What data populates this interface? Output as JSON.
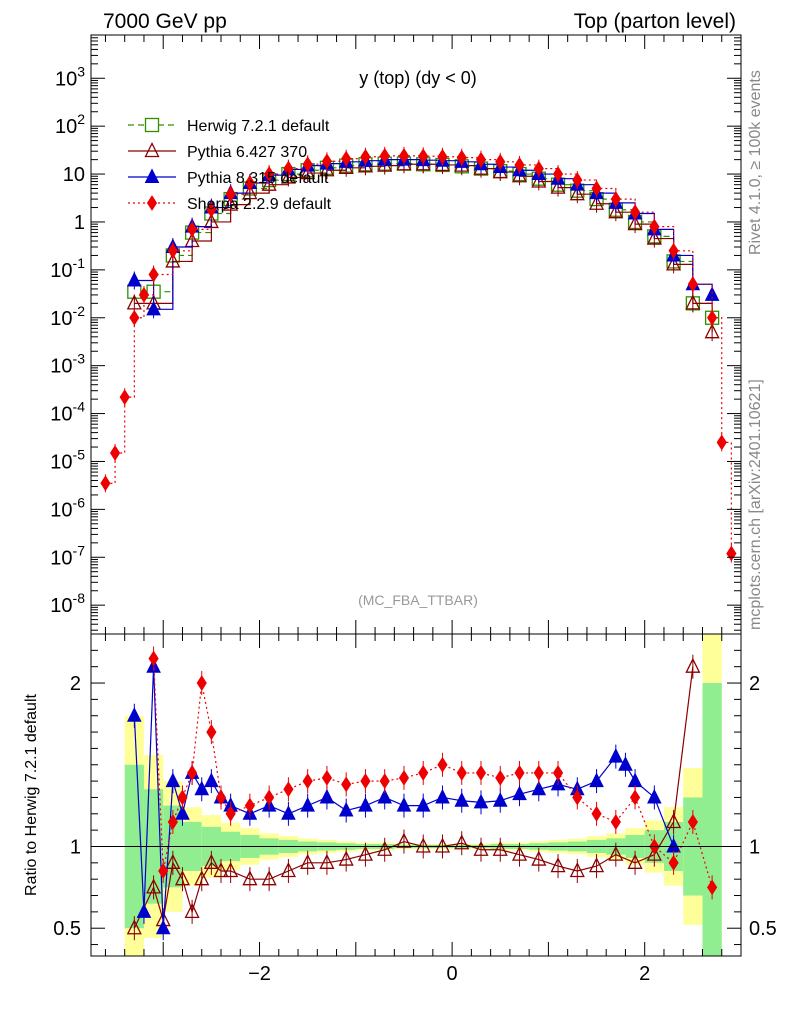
{
  "header": {
    "left_title": "7000 GeV pp",
    "right_title": "Top (parton level)"
  },
  "side_labels": {
    "rivet": "Rivet 4.1.0, ≥ 100k events",
    "mcplots": "mcplots.cern.ch [arXiv:2401.10621]"
  },
  "colors": {
    "herwig": "#2f8f00",
    "pythia6": "#8b0000",
    "pythia8": "#0000cc",
    "sherpa": "#ee0000",
    "band_inner": "#90ee90",
    "band_outer": "#ffff99"
  },
  "chart_data": [
    {
      "type": "line",
      "title": "y (top) (dy < 0)",
      "watermark": "(MC_FBA_TTBAR)",
      "xlabel": "",
      "ylabel": "",
      "yscale": "log",
      "ylim": [
        2.5e-09,
        8000
      ],
      "xlim": [
        -3.75,
        3.0
      ],
      "ytick_labels": [
        "10^-8",
        "10^-7",
        "10^-6",
        "10^-5",
        "10^-4",
        "10^-3",
        "10^-2",
        "10^-1",
        "1",
        "10",
        "10^2",
        "10^3"
      ],
      "legend": {
        "position": "top-left",
        "entries": [
          "Herwig 7.2.1 default",
          "Pythia 6.427 370",
          "Pythia 8.315 default",
          "Sherpa 2.2.9 default"
        ]
      },
      "series": [
        {
          "name": "Herwig 7.2.1 default",
          "style": "dashed",
          "marker": "open-square",
          "x": [
            -3.3,
            -3.1,
            -2.9,
            -2.7,
            -2.5,
            -2.3,
            -2.1,
            -1.9,
            -1.7,
            -1.5,
            -1.3,
            -1.1,
            -0.9,
            -0.7,
            -0.5,
            -0.3,
            -0.1,
            0.1,
            0.3,
            0.5,
            0.7,
            0.9,
            1.1,
            1.3,
            1.5,
            1.7,
            1.9,
            2.1,
            2.3,
            2.5,
            2.7
          ],
          "y": [
            0.035,
            0.035,
            0.2,
            0.6,
            1.5,
            3.0,
            5.0,
            7.5,
            10,
            12,
            13.5,
            15,
            16,
            16.5,
            16.5,
            16,
            15.5,
            14.5,
            13,
            11.5,
            10,
            8,
            6,
            4.5,
            3,
            1.8,
            1.0,
            0.5,
            0.15,
            0.02,
            0.01
          ]
        },
        {
          "name": "Pythia 6.427 370",
          "style": "solid",
          "marker": "open-triangle",
          "x": [
            -3.3,
            -3.1,
            -2.9,
            -2.7,
            -2.5,
            -2.3,
            -2.1,
            -1.9,
            -1.7,
            -1.5,
            -1.3,
            -1.1,
            -0.9,
            -0.7,
            -0.5,
            -0.3,
            -0.1,
            0.1,
            0.3,
            0.5,
            0.7,
            0.9,
            1.1,
            1.3,
            1.5,
            1.7,
            1.9,
            2.1,
            2.3,
            2.5,
            2.7
          ],
          "y": [
            0.02,
            0.02,
            0.15,
            0.4,
            1.0,
            2.3,
            4.0,
            6.0,
            8.5,
            10.5,
            12,
            13.5,
            14.5,
            15,
            16,
            16,
            15.5,
            15,
            13,
            11,
            9,
            7,
            5.2,
            3.8,
            2.4,
            1.6,
            0.9,
            0.45,
            0.13,
            0.02,
            0.005
          ]
        },
        {
          "name": "Pythia 8.315 default",
          "style": "solid",
          "marker": "filled-triangle",
          "x": [
            -3.3,
            -3.1,
            -2.9,
            -2.7,
            -2.5,
            -2.3,
            -2.1,
            -1.9,
            -1.7,
            -1.5,
            -1.3,
            -1.1,
            -0.9,
            -0.7,
            -0.5,
            -0.3,
            -0.1,
            0.1,
            0.3,
            0.5,
            0.7,
            0.9,
            1.1,
            1.3,
            1.5,
            1.7,
            1.9,
            2.1,
            2.3,
            2.5,
            2.7
          ],
          "y": [
            0.06,
            0.015,
            0.3,
            0.8,
            2.0,
            4.0,
            6.5,
            9.5,
            12.5,
            15,
            16.5,
            18,
            19,
            20,
            20,
            19.5,
            19,
            18,
            16,
            14,
            12,
            10,
            8,
            6,
            4,
            2.5,
            1.5,
            0.7,
            0.2,
            0.05,
            0.03
          ]
        },
        {
          "name": "Sherpa 2.2.9 default",
          "style": "dotted",
          "marker": "filled-diamond",
          "x": [
            -3.6,
            -3.5,
            -3.4,
            -3.3,
            -3.2,
            -3.1,
            -2.9,
            -2.7,
            -2.5,
            -2.3,
            -2.1,
            -1.9,
            -1.7,
            -1.5,
            -1.3,
            -1.1,
            -0.9,
            -0.7,
            -0.5,
            -0.3,
            -0.1,
            0.1,
            0.3,
            0.5,
            0.7,
            0.9,
            1.1,
            1.3,
            1.5,
            1.7,
            1.9,
            2.1,
            2.3,
            2.5,
            2.7,
            2.8,
            2.9
          ],
          "y": [
            3.5e-06,
            1.5e-05,
            0.00022,
            0.01,
            0.03,
            0.08,
            0.25,
            0.7,
            1.8,
            3.8,
            6.5,
            10,
            13,
            16,
            18.5,
            21,
            23,
            24,
            24,
            23.5,
            23,
            22,
            20,
            18,
            15.5,
            13,
            10,
            7.5,
            5,
            3,
            1.6,
            0.8,
            0.25,
            0.05,
            0.01,
            2.5e-05,
            1.2e-07
          ]
        }
      ]
    },
    {
      "type": "line",
      "title": "",
      "xlabel": "",
      "ylabel": "Ratio to Herwig 7.2.1 default",
      "ylim": [
        0.33,
        2.3
      ],
      "xlim": [
        -3.75,
        3.0
      ],
      "xtick_labels": [
        "−2",
        "0",
        "2"
      ],
      "ytick_labels": [
        "0.5",
        "1",
        "2"
      ],
      "reference_line": 1,
      "series": [
        {
          "name": "Pythia 6.427 370",
          "x": [
            -3.3,
            -3.1,
            -3.0,
            -2.9,
            -2.8,
            -2.7,
            -2.6,
            -2.5,
            -2.4,
            -2.3,
            -2.1,
            -1.9,
            -1.7,
            -1.5,
            -1.3,
            -1.1,
            -0.9,
            -0.7,
            -0.5,
            -0.3,
            -0.1,
            0.1,
            0.3,
            0.5,
            0.7,
            0.9,
            1.1,
            1.3,
            1.5,
            1.7,
            1.9,
            2.1,
            2.3,
            2.5
          ],
          "y": [
            0.5,
            0.75,
            0.55,
            0.9,
            0.8,
            0.6,
            0.8,
            0.9,
            0.85,
            0.85,
            0.8,
            0.8,
            0.85,
            0.9,
            0.9,
            0.92,
            0.95,
            0.98,
            1.03,
            1.0,
            1.0,
            1.02,
            0.98,
            0.98,
            0.95,
            0.92,
            0.88,
            0.85,
            0.88,
            0.95,
            0.9,
            0.95,
            1.15,
            2.1
          ]
        },
        {
          "name": "Pythia 8.315 default",
          "x": [
            -3.3,
            -3.2,
            -3.1,
            -3.0,
            -2.9,
            -2.8,
            -2.7,
            -2.6,
            -2.5,
            -2.4,
            -2.3,
            -2.1,
            -1.9,
            -1.7,
            -1.5,
            -1.3,
            -1.1,
            -0.9,
            -0.7,
            -0.5,
            -0.3,
            -0.1,
            0.1,
            0.3,
            0.5,
            0.7,
            0.9,
            1.1,
            1.3,
            1.5,
            1.7,
            1.8,
            1.9,
            2.1,
            2.3
          ],
          "y": [
            1.8,
            0.6,
            2.1,
            0.5,
            1.4,
            1.2,
            1.45,
            1.35,
            1.4,
            1.3,
            1.25,
            1.2,
            1.25,
            1.2,
            1.25,
            1.3,
            1.22,
            1.25,
            1.3,
            1.25,
            1.25,
            1.3,
            1.28,
            1.27,
            1.28,
            1.32,
            1.35,
            1.38,
            1.35,
            1.4,
            1.55,
            1.5,
            1.4,
            1.3,
            1.0
          ]
        },
        {
          "name": "Sherpa 2.2.9 default",
          "x": [
            -3.1,
            -3.0,
            -2.9,
            -2.8,
            -2.7,
            -2.6,
            -2.5,
            -2.4,
            -2.3,
            -2.1,
            -1.9,
            -1.7,
            -1.5,
            -1.3,
            -1.1,
            -0.9,
            -0.7,
            -0.5,
            -0.3,
            -0.1,
            0.1,
            0.3,
            0.5,
            0.7,
            0.9,
            1.1,
            1.3,
            1.5,
            1.7,
            1.9,
            2.1,
            2.3,
            2.5,
            2.7
          ],
          "y": [
            2.15,
            0.85,
            1.15,
            1.3,
            1.45,
            2.0,
            1.7,
            1.3,
            1.2,
            1.25,
            1.3,
            1.35,
            1.4,
            1.42,
            1.38,
            1.4,
            1.4,
            1.42,
            1.45,
            1.5,
            1.45,
            1.45,
            1.42,
            1.45,
            1.45,
            1.45,
            1.3,
            1.2,
            1.15,
            1.3,
            1.0,
            0.9,
            1.15,
            0.75
          ]
        },
        {
          "name": "Herwig 7.2.1 default uncertainty band (inner)",
          "x": [
            -3.3,
            -3.1,
            -2.9,
            -2.7,
            -2.5,
            -2.3,
            -2.1,
            -1.9,
            -1.7,
            -1.5,
            -1.3,
            -1.1,
            -0.9,
            -0.7,
            -0.5,
            -0.3,
            -0.1,
            0.1,
            0.3,
            0.5,
            0.7,
            0.9,
            1.1,
            1.3,
            1.5,
            1.7,
            1.9,
            2.1,
            2.3,
            2.5,
            2.7
          ],
          "y_low": [
            0.5,
            0.65,
            0.75,
            0.85,
            0.88,
            0.91,
            0.93,
            0.95,
            0.96,
            0.97,
            0.975,
            0.98,
            0.985,
            0.985,
            0.99,
            0.99,
            0.99,
            0.99,
            0.99,
            0.985,
            0.985,
            0.98,
            0.975,
            0.97,
            0.96,
            0.95,
            0.93,
            0.9,
            0.85,
            0.7,
            0.33
          ],
          "y_high": [
            1.5,
            1.35,
            1.25,
            1.15,
            1.12,
            1.09,
            1.07,
            1.05,
            1.04,
            1.03,
            1.025,
            1.02,
            1.015,
            1.015,
            1.01,
            1.01,
            1.01,
            1.01,
            1.01,
            1.015,
            1.015,
            1.02,
            1.025,
            1.03,
            1.04,
            1.05,
            1.07,
            1.1,
            1.15,
            1.3,
            2.0
          ]
        }
      ]
    }
  ]
}
